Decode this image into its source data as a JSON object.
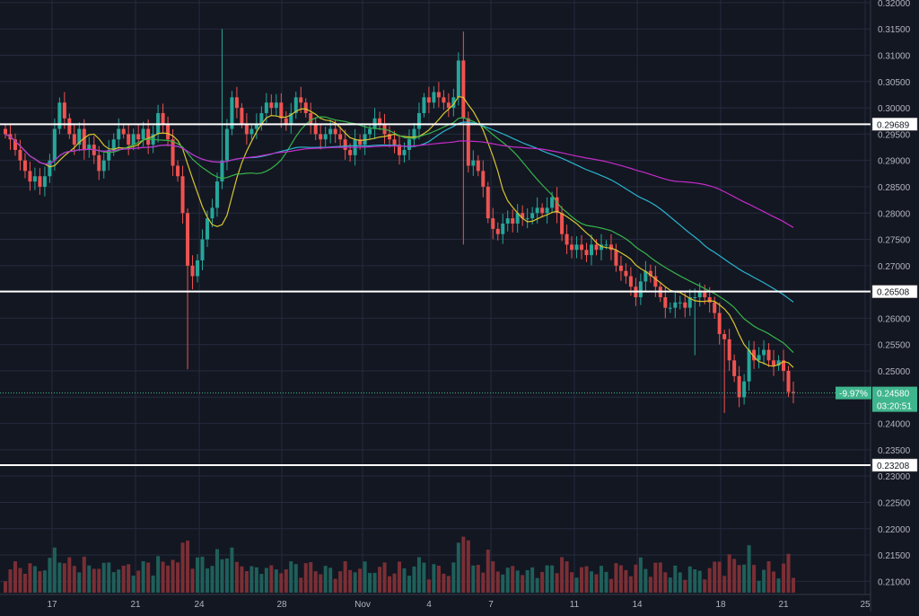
{
  "colors": {
    "background": "#131722",
    "grid": "#262b3e",
    "axis_text": "#b2b5be",
    "up": "#26a69a",
    "down": "#ef5350",
    "level_line": "#ffffff",
    "ma_yellow": "#d8c531",
    "ma_green": "#37b34a",
    "ma_cyan": "#2ab3cf",
    "ma_magenta": "#c42bc9",
    "label_bg": "#ffffff",
    "label_text": "#131722",
    "price_tag_bg": "#3fb58d",
    "price_tag_text": "#ffffff"
  },
  "chart_data": {
    "type": "candlestick",
    "x_tick_labels": [
      "17",
      "21",
      "24",
      "28",
      "Nov",
      "4",
      "7",
      "11",
      "14",
      "18",
      "21",
      "25"
    ],
    "y_tick_labels": [
      "0.32000",
      "0.31500",
      "0.31000",
      "0.30500",
      "0.30000",
      "0.29500",
      "0.29000",
      "0.28500",
      "0.28000",
      "0.27500",
      "0.27000",
      "0.26500",
      "0.26000",
      "0.25500",
      "0.25000",
      "0.24500",
      "0.24000",
      "0.23500",
      "0.23000",
      "0.22500",
      "0.22000",
      "0.21500",
      "0.21000"
    ],
    "ylim": [
      0.2075,
      0.3205
    ],
    "horizontal_levels": [
      {
        "value": 0.29689,
        "label": "0.29689"
      },
      {
        "value": 0.26508,
        "label": "0.26508"
      },
      {
        "value": 0.23208,
        "label": "0.23208"
      }
    ],
    "current_price": {
      "value": 0.2458,
      "label": "0.24580",
      "change": "-9.97%",
      "countdown": "03:20:51"
    },
    "candles_anchor_close": [
      [
        0.295,
        0.294,
        0.292,
        0.29,
        0.288,
        0.286,
        0.287,
        0.285,
        0.287,
        0.29,
        0.296,
        0.301,
        0.298,
        0.295,
        0.293,
        0.296,
        0.292,
        0.293,
        0.291,
        0.288,
        0.29,
        0.292,
        0.294,
        0.296,
        0.295,
        0.293,
        0.295,
        0.294,
        0.296,
        0.293,
        0.295,
        0.299,
        0.297,
        0.294,
        0.289,
        0.287,
        0.28,
        0.27,
        0.268,
        0.271,
        0.275,
        0.279,
        0.281,
        0.286,
        0.29,
        0.296,
        0.302,
        0.3,
        0.297,
        0.295,
        0.296,
        0.297,
        0.299,
        0.301,
        0.3,
        0.301,
        0.298,
        0.297,
        0.299,
        0.302,
        0.301,
        0.299,
        0.297,
        0.295,
        0.294,
        0.295,
        0.296,
        0.295,
        0.294,
        0.292,
        0.291,
        0.294,
        0.293,
        0.295,
        0.296,
        0.298,
        0.297,
        0.295,
        0.294,
        0.293,
        0.291,
        0.292,
        0.294,
        0.296,
        0.299,
        0.302,
        0.301,
        0.303,
        0.302,
        0.301,
        0.3,
        0.302,
        0.309,
        0.298,
        0.289,
        0.29,
        0.288,
        0.285,
        0.279,
        0.277,
        0.276,
        0.278,
        0.279,
        0.278,
        0.28,
        0.279,
        0.279,
        0.28,
        0.281,
        0.28,
        0.281,
        0.283,
        0.28,
        0.276,
        0.274,
        0.273,
        0.274,
        0.273,
        0.272,
        0.274,
        0.273,
        0.274,
        0.274,
        0.273,
        0.27,
        0.269,
        0.268,
        0.266,
        0.264,
        0.267,
        0.269,
        0.268,
        0.266,
        0.264,
        0.262,
        0.262,
        0.263,
        0.263,
        0.262,
        0.264,
        0.264,
        0.265,
        0.264,
        0.263,
        0.261,
        0.257,
        0.256,
        0.252,
        0.249,
        0.245,
        0.248,
        0.254,
        0.252,
        0.253,
        0.254,
        0.252,
        0.251,
        0.252,
        0.25,
        0.246,
        0.2458
      ]
    ],
    "moving_averages": [
      {
        "color_key": "ma_yellow",
        "period": 9
      },
      {
        "color_key": "ma_green",
        "period": 20
      },
      {
        "color_key": "ma_cyan",
        "period": 50
      },
      {
        "color_key": "ma_magenta",
        "period": 100
      }
    ],
    "grid": true
  }
}
